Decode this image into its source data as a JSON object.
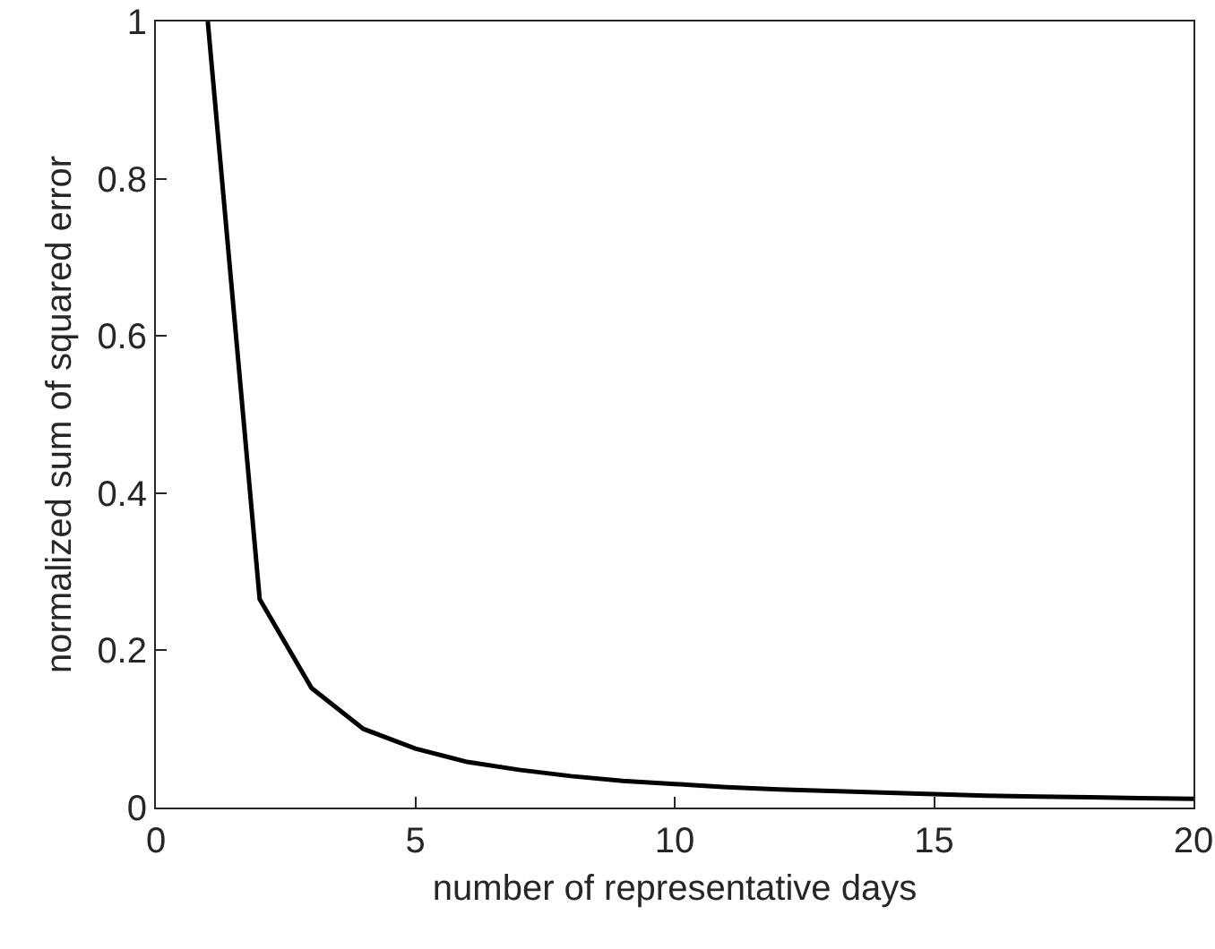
{
  "chart_data": {
    "type": "line",
    "xlabel": "number of representative days",
    "ylabel": "normalized sum of squared error",
    "x": [
      1,
      2,
      3,
      4,
      5,
      6,
      7,
      8,
      9,
      10,
      11,
      12,
      13,
      14,
      15,
      16,
      17,
      18,
      19,
      20
    ],
    "series": [
      {
        "color": "#000000",
        "values": [
          1,
          0.265,
          0.152,
          0.1,
          0.075,
          0.058,
          0.048,
          0.04,
          0.034,
          0.03,
          0.026,
          0.023,
          0.021,
          0.019,
          0.017,
          0.015,
          0.014,
          0.013,
          0.012,
          0.011
        ]
      }
    ],
    "xlim": [
      0,
      20
    ],
    "xticks": [
      0,
      5,
      10,
      15,
      20
    ],
    "ylim": [
      0,
      1
    ],
    "yticks": [
      0,
      0.2,
      0.4,
      0.6,
      0.8,
      1
    ],
    "grid": false,
    "marker": "none",
    "line_style": "solid"
  }
}
